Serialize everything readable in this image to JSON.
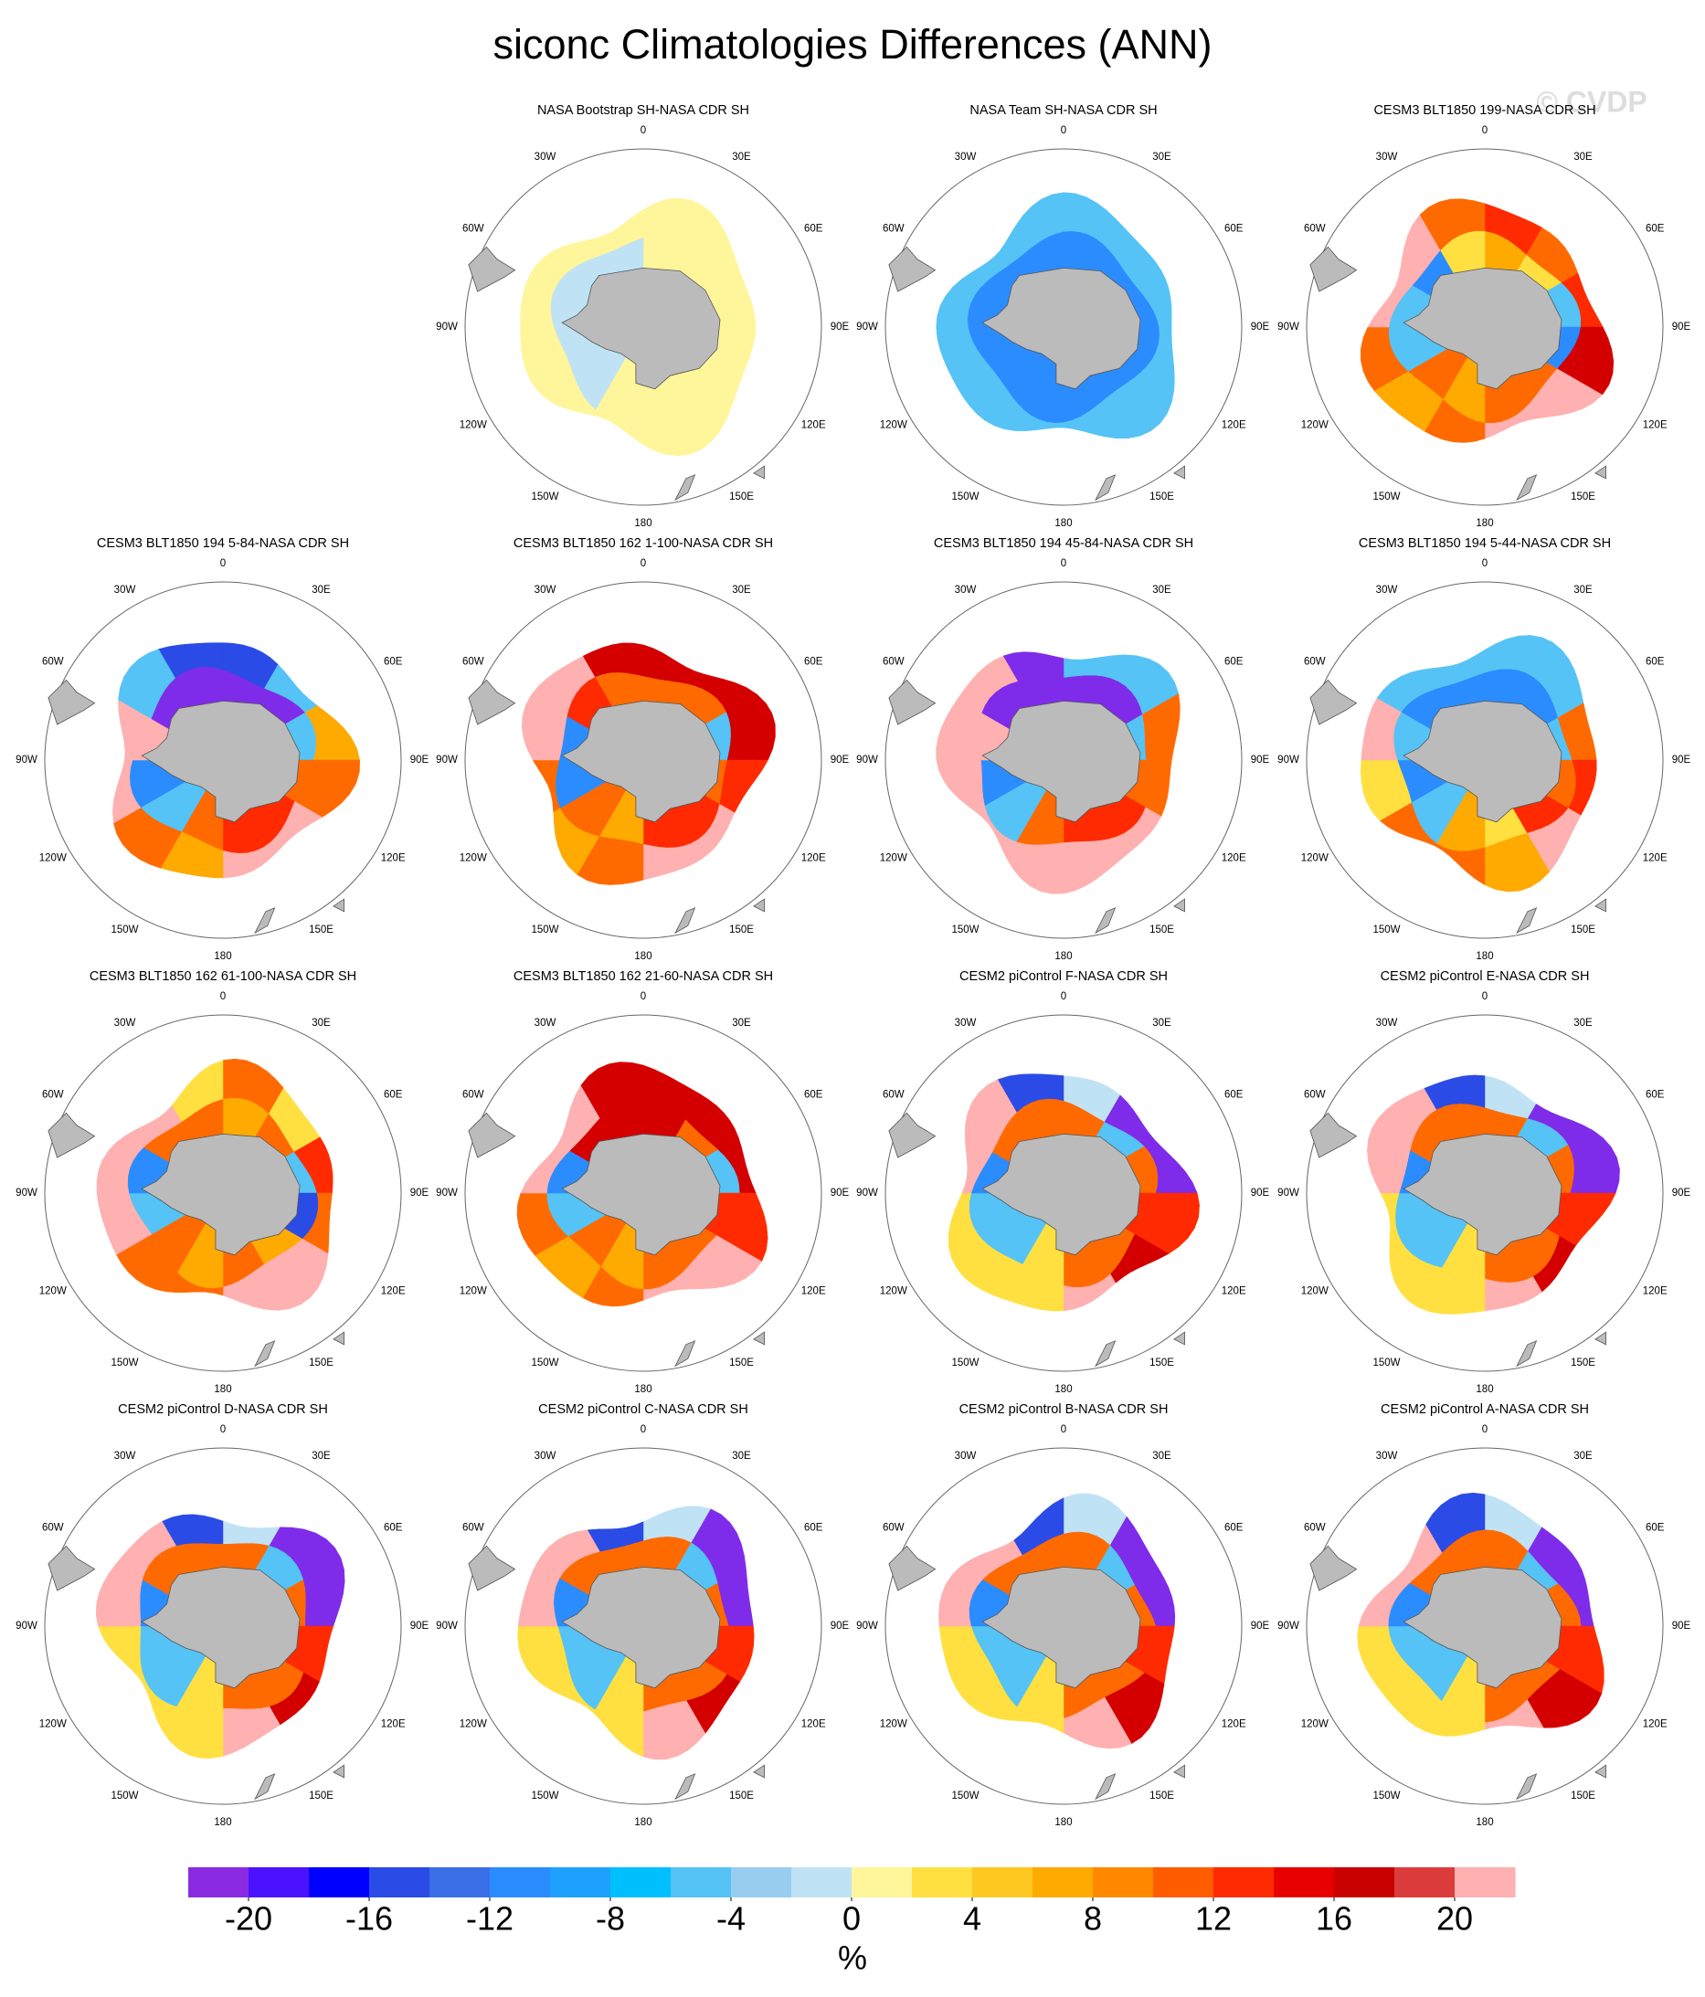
{
  "title": "siconc Climatologies Differences (ANN)",
  "watermark": "© CVDP",
  "lon_labels": [
    "0",
    "30E",
    "60E",
    "90E",
    "120E",
    "150E",
    "180",
    "150W",
    "120W",
    "90W",
    "60W",
    "30W"
  ],
  "panels": [
    {
      "title": "NASA Bootstrap SH-NASA CDR SH"
    },
    {
      "title": "NASA Team SH-NASA CDR SH"
    },
    {
      "title": "CESM3 BLT1850 199-NASA CDR SH"
    },
    {
      "title": "CESM3 BLT1850 194 5-84-NASA CDR SH"
    },
    {
      "title": "CESM3 BLT1850 162 1-100-NASA CDR SH"
    },
    {
      "title": "CESM3 BLT1850 194 45-84-NASA CDR SH"
    },
    {
      "title": "CESM3 BLT1850 194 5-44-NASA CDR SH"
    },
    {
      "title": "CESM3 BLT1850 162 61-100-NASA CDR SH"
    },
    {
      "title": "CESM3 BLT1850 162 21-60-NASA CDR SH"
    },
    {
      "title": "CESM2 piControl F-NASA CDR SH"
    },
    {
      "title": "CESM2 piControl E-NASA CDR SH"
    },
    {
      "title": "CESM2 piControl D-NASA CDR SH"
    },
    {
      "title": "CESM2 piControl C-NASA CDR SH"
    },
    {
      "title": "CESM2 piControl B-NASA CDR SH"
    },
    {
      "title": "CESM2 piControl A-NASA CDR SH"
    }
  ],
  "colorbar": {
    "colors": [
      "#8a2be2",
      "#4b12ff",
      "#0000ff",
      "#2a4be6",
      "#3a6fe8",
      "#2b8cff",
      "#1ea0ff",
      "#00bfff",
      "#55c3f5",
      "#98cdf0",
      "#bfe3f5",
      "#fff59a",
      "#ffe040",
      "#ffc820",
      "#ffaa00",
      "#ff8800",
      "#ff5c00",
      "#ff2a00",
      "#e80000",
      "#c80000",
      "#dc3c3c",
      "#ffb0b0"
    ],
    "ticks": [
      -20,
      -16,
      -12,
      -8,
      -4,
      0,
      4,
      8,
      12,
      16,
      20
    ],
    "label": "%"
  }
}
